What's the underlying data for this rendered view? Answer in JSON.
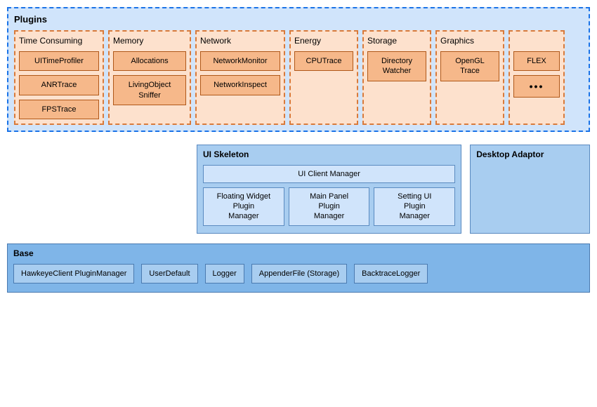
{
  "plugins": {
    "title": "Plugins",
    "categories": [
      {
        "name": "Time Consuming",
        "items": [
          "UITimeProfiler",
          "ANRTrace",
          "FPSTrace"
        ]
      },
      {
        "name": "Memory",
        "items": [
          "Allocations",
          "LivingObject\nSniffer"
        ]
      },
      {
        "name": "Network",
        "items": [
          "NetworkMonitor",
          "NetworkInspect"
        ]
      },
      {
        "name": "Energy",
        "items": [
          "CPUTrace"
        ]
      },
      {
        "name": "Storage",
        "items": [
          "Directory\nWatcher"
        ]
      },
      {
        "name": "Graphics",
        "items": [
          "OpenGL\nTrace"
        ]
      },
      {
        "name": "",
        "items": [
          "FLEX",
          "•••"
        ]
      }
    ]
  },
  "uiSkeleton": {
    "title": "UI Skeleton",
    "client": "UI Client Manager",
    "managers": [
      "Floating Widget\nPlugin\nManager",
      "Main Panel\nPlugin\nManager",
      "Setting UI\nPlugin\nManager"
    ]
  },
  "desktopAdaptor": {
    "title": "Desktop Adaptor"
  },
  "base": {
    "title": "Base",
    "items": [
      "HawkeyeClient PluginManager",
      "UserDefault",
      "Logger",
      "AppenderFile (Storage)",
      "BacktraceLogger"
    ]
  },
  "colors": {
    "blue_light": "#d0e4fb",
    "blue_mid": "#a8cdf0",
    "blue_dark": "#7fb5e8",
    "blue_border": "#5a8ac0",
    "blue_dashed": "#1a73e8",
    "orange_light": "#fde1cd",
    "orange_mid": "#f6b88a",
    "orange_border": "#b05819",
    "orange_dashed": "#d97a3a"
  }
}
